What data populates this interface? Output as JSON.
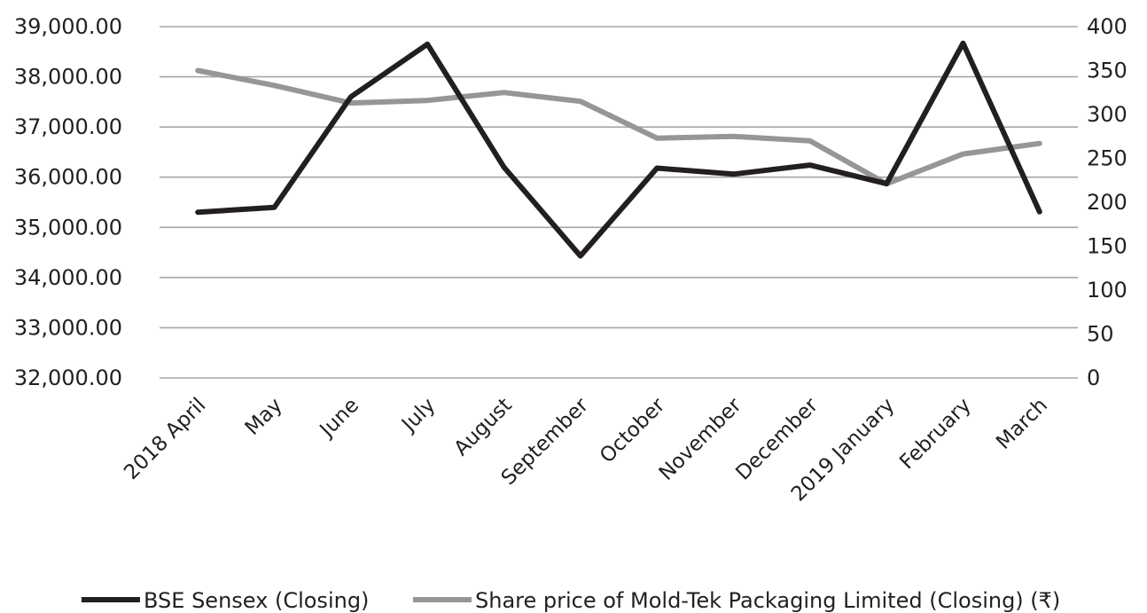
{
  "chart_data": {
    "type": "line",
    "categories": [
      "2018 April",
      "May",
      "June",
      "July",
      "August",
      "September",
      "October",
      "November",
      "December",
      "2019 January",
      "February",
      "March"
    ],
    "series": [
      {
        "name": "BSE Sensex (Closing)",
        "axis": "left",
        "color": "#231f20",
        "values": [
          35300,
          35400,
          37600,
          38650,
          36200,
          34430,
          36180,
          36060,
          36240,
          35870,
          38670,
          35310
        ]
      },
      {
        "name": "Share price of Mold-Tek Packaging Limited (Closing) (₹)",
        "axis": "right",
        "color": "#969696",
        "values": [
          350,
          333,
          313,
          316,
          325,
          315,
          273,
          275,
          270,
          221,
          255,
          267
        ]
      }
    ],
    "y_left": {
      "ylim": [
        32000,
        39000
      ],
      "ticks": [
        32000,
        33000,
        34000,
        35000,
        36000,
        37000,
        38000,
        39000
      ],
      "tick_labels": [
        "32,000.00",
        "33,000.00",
        "34,000.00",
        "35,000.00",
        "36,000.00",
        "37,000.00",
        "38,000.00",
        "39,000.00"
      ]
    },
    "y_right": {
      "ylim": [
        0,
        400
      ],
      "ticks": [
        0,
        50,
        100,
        150,
        200,
        250,
        300,
        350,
        400
      ],
      "tick_labels": [
        "0",
        "50",
        "100",
        "150",
        "200",
        "250",
        "300",
        "350",
        "400"
      ]
    },
    "grid": true,
    "legend_position": "bottom"
  }
}
